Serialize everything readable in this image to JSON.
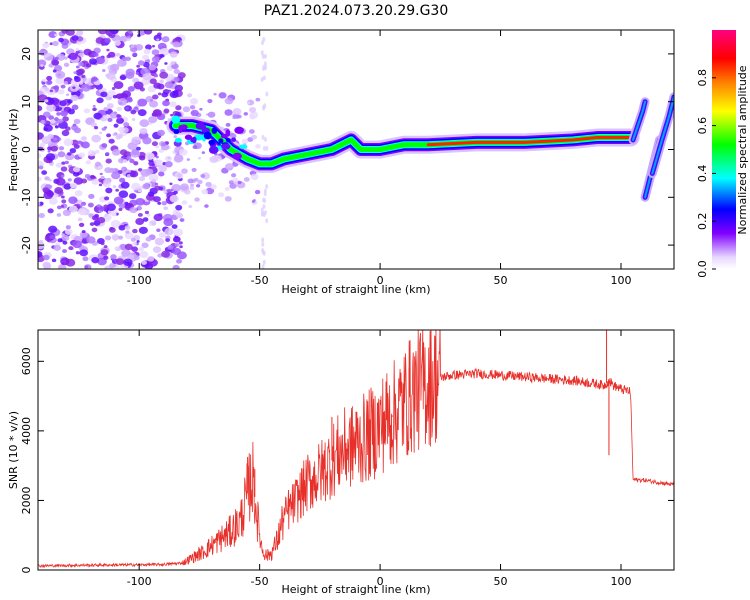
{
  "title": "PAZ1.2024.073.20.29.G30",
  "chart_data": [
    {
      "type": "heatmap",
      "xlabel": "Height of straight line (km)",
      "ylabel": "Frequency (Hz)",
      "xlim": [
        -142,
        122
      ],
      "ylim": [
        -25,
        25
      ],
      "xticks": [
        -100,
        -50,
        0,
        50,
        100
      ],
      "yticks": [
        -20,
        -10,
        0,
        10,
        20
      ],
      "colorbar": {
        "label": "Normalized spectral amplitude",
        "range": [
          0,
          1
        ],
        "ticks": [
          "0.0",
          "0.2",
          "0.4",
          "0.6",
          "0.8"
        ],
        "colors": [
          "#f8f0ff",
          "#8000ff",
          "#0000ff",
          "#00ffff",
          "#00ff00",
          "#ffff00",
          "#ff8000",
          "#ff0000",
          "#ff0080"
        ]
      },
      "ridge": {
        "x": [
          -85,
          -78,
          -70,
          -62,
          -55,
          -50,
          -45,
          -40,
          -30,
          -20,
          -12,
          -8,
          0,
          10,
          20,
          40,
          60,
          80,
          90,
          100,
          104
        ],
        "y": [
          5,
          5,
          4,
          0,
          -2,
          -3,
          -3,
          -2,
          -1,
          0,
          2,
          0,
          0,
          1,
          1,
          1.5,
          1.5,
          2,
          2.5,
          2.5,
          2.5
        ]
      },
      "side_tracks": [
        {
          "x": [
            105,
            107,
            109,
            110
          ],
          "y": [
            2,
            5,
            8,
            10
          ]
        },
        {
          "x": [
            110,
            112,
            114,
            116
          ],
          "y": [
            -10,
            -6,
            -2,
            2
          ]
        },
        {
          "x": [
            113,
            117,
            120,
            122
          ],
          "y": [
            -5,
            2,
            7,
            11
          ]
        }
      ]
    },
    {
      "type": "line",
      "xlabel": "Height of straight line (km)",
      "ylabel": "SNR (10 * v/v)",
      "xlim": [
        -142,
        122
      ],
      "ylim": [
        0,
        6900
      ],
      "xticks": [
        -100,
        -50,
        0,
        50,
        100
      ],
      "yticks": [
        0,
        2000,
        4000,
        6000
      ],
      "color": "#e8302a",
      "series": [
        {
          "x": [
            -142,
            -120,
            -100,
            -90,
            -82,
            -78,
            -74,
            -70,
            -66,
            -62,
            -58,
            -55,
            -53,
            -51,
            -49,
            -47,
            -45,
            -43,
            -40,
            -37,
            -33,
            -30,
            -26,
            -22,
            -18,
            -14,
            -10,
            -6,
            -2,
            2,
            6,
            10,
            14,
            18,
            22,
            26,
            30,
            35,
            40,
            50,
            60,
            70,
            80,
            85,
            90,
            93,
            95,
            97,
            100,
            103,
            104,
            105,
            110,
            122
          ],
          "y": [
            120,
            140,
            150,
            160,
            200,
            350,
            500,
            700,
            900,
            1100,
            1400,
            2200,
            2700,
            1500,
            600,
            400,
            500,
            800,
            1500,
            1800,
            2200,
            2500,
            2700,
            3000,
            3300,
            3500,
            3600,
            3800,
            4000,
            4300,
            4500,
            4800,
            5100,
            5300,
            5450,
            5550,
            5600,
            5620,
            5650,
            5600,
            5550,
            5500,
            5450,
            5400,
            5350,
            5300,
            5450,
            5300,
            5200,
            5150,
            5100,
            2600,
            2580,
            2450
          ]
        }
      ],
      "spikes": [
        {
          "x": -55,
          "y": 3250
        },
        {
          "x": -52,
          "y": 2900
        },
        {
          "x": -38,
          "y": 2300
        },
        {
          "x": -20,
          "y": 4400
        },
        {
          "x": -10,
          "y": 4550
        },
        {
          "x": 5,
          "y": 4400
        },
        {
          "x": 12,
          "y": 5800
        },
        {
          "x": 94,
          "y": 6900
        },
        {
          "x": 95,
          "y": 3300
        }
      ]
    }
  ]
}
